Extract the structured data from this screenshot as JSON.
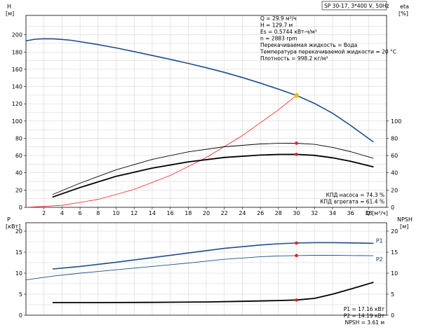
{
  "chart_data": [
    {
      "type": "line",
      "panel": "top",
      "title": "SP 30-17, 3*400 V, 50Hz",
      "ylabel_left": "H",
      "ylabel_left_unit": "[м]",
      "ylabel_right": "eta",
      "ylabel_right_unit": "[%]",
      "xlabel": "Q",
      "xlabel_unit": "[м³/ч]",
      "xlim": [
        0,
        40
      ],
      "ylim_left": [
        0,
        220
      ],
      "ylim_right": [
        0,
        220
      ],
      "x_ticks": [
        "2",
        "4",
        "6",
        "8",
        "10",
        "12",
        "14",
        "16",
        "18",
        "20",
        "22",
        "24",
        "26",
        "28",
        "30",
        "32",
        "34",
        "36",
        "38"
      ],
      "y_ticks_left": [
        "0",
        "20",
        "40",
        "60",
        "80",
        "100",
        "120",
        "140",
        "160",
        "180",
        "200"
      ],
      "y_ticks_right": [
        "0",
        "20",
        "40",
        "60",
        "80",
        "100"
      ],
      "grid": true,
      "series": [
        {
          "name": "H",
          "color": "#1f4e8c",
          "width": 1.6,
          "x": [
            0,
            1,
            2,
            3,
            4,
            5,
            6,
            8,
            10,
            12,
            14,
            16,
            18,
            20,
            22,
            24,
            26,
            28,
            30,
            32,
            34,
            36,
            38.5
          ],
          "y": [
            193,
            194.8,
            195.4,
            195.3,
            194.6,
            193.6,
            192,
            188.6,
            184.8,
            180.5,
            176,
            171.5,
            166.8,
            161.8,
            156.4,
            150.4,
            143.9,
            137,
            129.7,
            120.5,
            109,
            95,
            76
          ]
        },
        {
          "name": "",
          "color": "#ff2020",
          "width": 0.8,
          "x": [
            0,
            4,
            8,
            12,
            16,
            20,
            24,
            28,
            30
          ],
          "y": [
            0,
            2.3,
            9.2,
            20.8,
            36.9,
            57.7,
            83.1,
            113,
            129.7
          ]
        },
        {
          "name": "",
          "color": "#000000",
          "width": 0.9,
          "x": [
            3,
            6,
            10,
            14,
            18,
            22,
            26,
            28,
            30,
            32,
            34,
            36,
            38.5
          ],
          "y": [
            15,
            28,
            43.5,
            55.5,
            64.3,
            70.2,
            73.5,
            74.2,
            74.3,
            73,
            69.5,
            64.5,
            57
          ]
        },
        {
          "name": "",
          "color": "#000000",
          "width": 1.8,
          "x": [
            3,
            6,
            10,
            14,
            18,
            22,
            26,
            28,
            30,
            32,
            34,
            36,
            38.5
          ],
          "y": [
            12,
            23,
            36,
            45.5,
            52.7,
            57.8,
            60.6,
            61.3,
            61.4,
            60.2,
            57.4,
            53.3,
            47
          ]
        }
      ],
      "markers": [
        {
          "x": 30,
          "y": 129.7,
          "color": "#f2b705",
          "size": 3.3
        },
        {
          "x": 30,
          "y": 74.3,
          "color": "#e02020",
          "size": 2.3
        },
        {
          "x": 30,
          "y": 61.4,
          "color": "#e02020",
          "size": 2.3
        }
      ],
      "info_text": [
        "Q = 29.9 м³/ч",
        "H = 129.7 м",
        "Es = 0.5744 кВт-ч/м³",
        "n = 2883 rpm",
        "Перекачиваемая жидкость = Вода",
        "Температура перекачиваемой жидкости = 20 °C",
        "Плотность = 998.2 кг/м³"
      ],
      "annotations": [
        "КПД насоса = 74.3 %",
        "КПД агрегата = 61.4 %"
      ]
    },
    {
      "type": "line",
      "panel": "bottom",
      "ylabel_left": "P",
      "ylabel_left_unit": "[кВт]",
      "ylabel_right": "NPSH",
      "ylabel_right_unit": "[м]",
      "xlim": [
        0,
        40
      ],
      "ylim_left": [
        0,
        22
      ],
      "ylim_right": [
        0,
        22
      ],
      "y_ticks_left": [
        "0",
        "5",
        "10",
        "15",
        "20"
      ],
      "y_ticks_right": [
        "0",
        "5",
        "10",
        "15",
        "20"
      ],
      "grid": true,
      "series": [
        {
          "name": "P1",
          "color": "#1f4e8c",
          "width": 1.6,
          "x": [
            3,
            6,
            10,
            14,
            18,
            22,
            26,
            28,
            30,
            32,
            34,
            36,
            38.5
          ],
          "y": [
            11,
            11.6,
            12.6,
            13.7,
            14.8,
            15.9,
            16.7,
            17,
            17.16,
            17.25,
            17.25,
            17.2,
            17.1
          ]
        },
        {
          "name": "P2",
          "color": "#1f4e8c",
          "width": 0.9,
          "x": [
            0,
            3,
            6,
            10,
            14,
            18,
            22,
            26,
            28,
            30,
            32,
            34,
            36,
            38.5
          ],
          "y": [
            8.4,
            9.3,
            10,
            10.8,
            11.6,
            12.4,
            13.3,
            13.9,
            14.1,
            14.19,
            14.25,
            14.25,
            14.2,
            14.15
          ]
        },
        {
          "name": "NPSH",
          "color": "#000000",
          "width": 1.8,
          "x": [
            3,
            8,
            14,
            20,
            24,
            28,
            30,
            32,
            34,
            36,
            38.5
          ],
          "y": [
            3.0,
            3.0,
            3.05,
            3.15,
            3.3,
            3.48,
            3.61,
            4.0,
            5.0,
            6.2,
            7.8
          ]
        }
      ],
      "markers": [
        {
          "x": 30,
          "y": 17.16,
          "color": "#e02020",
          "size": 2.3
        },
        {
          "x": 30,
          "y": 14.19,
          "color": "#e02020",
          "size": 2.3
        },
        {
          "x": 30,
          "y": 3.61,
          "color": "#e02020",
          "size": 2.3
        }
      ],
      "annotations": [
        "P1 = 17.16 кВт",
        "P2 = 14.19 кВт",
        "NPSH = 3.61 м"
      ]
    }
  ]
}
